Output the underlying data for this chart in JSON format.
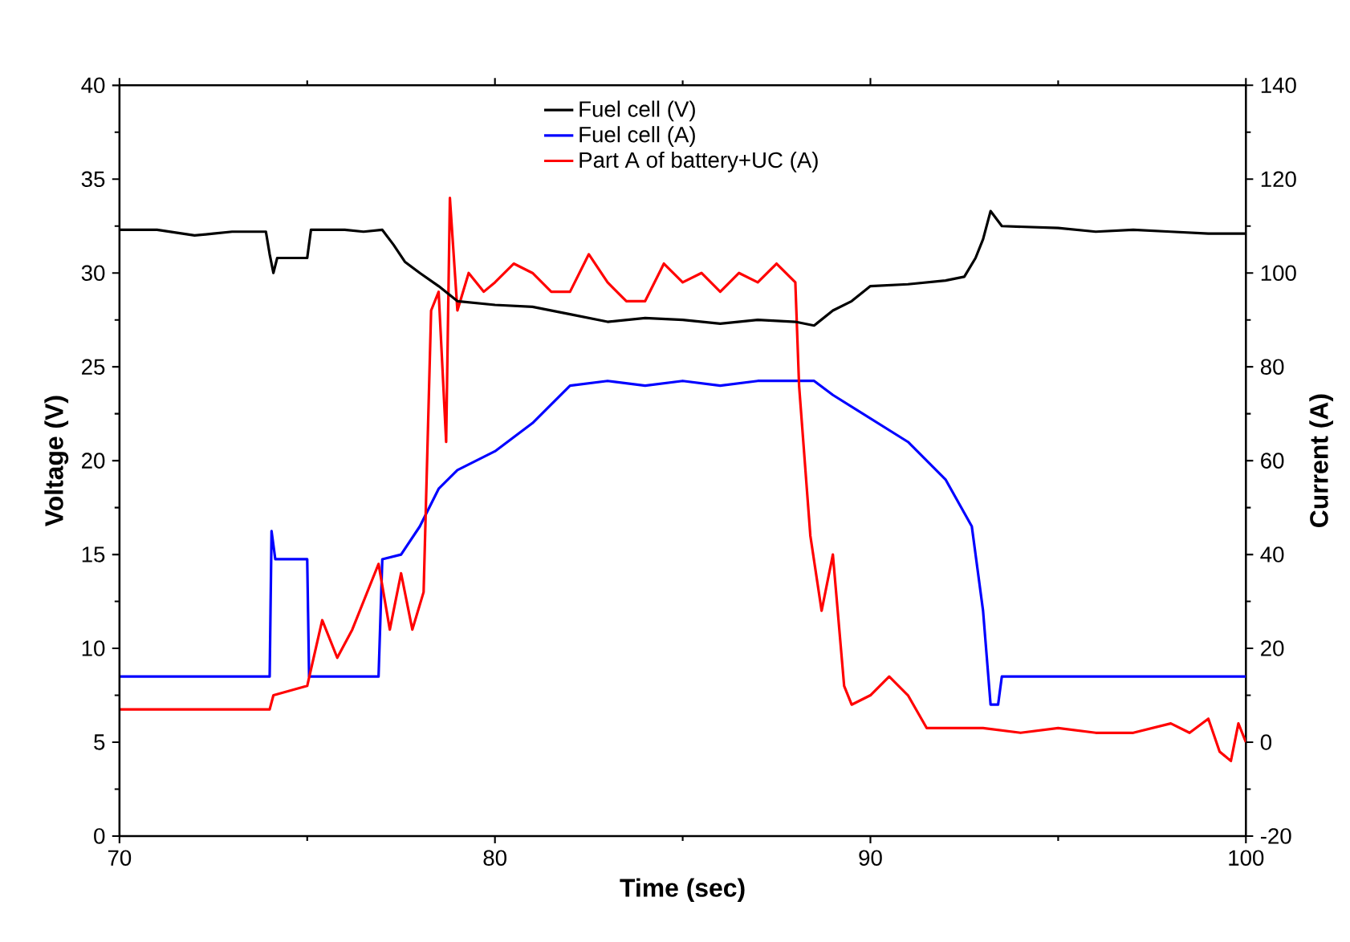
{
  "chart_data": {
    "type": "line",
    "xlabel": "Time (sec)",
    "ylabel": "Voltage (V)",
    "y2label": "Current (A)",
    "xlim": [
      70,
      100
    ],
    "xticks": [
      70,
      80,
      90,
      100
    ],
    "ylim": [
      0,
      40
    ],
    "yticks": [
      0,
      5,
      10,
      15,
      20,
      25,
      30,
      35,
      40
    ],
    "y2lim": [
      -20,
      140
    ],
    "y2ticks": [
      -20,
      0,
      20,
      40,
      60,
      80,
      100,
      120,
      140
    ],
    "legend": "top",
    "grid": false,
    "line_style": "solid",
    "marker": "none",
    "series": [
      {
        "name": "Fuel cell (V)",
        "color": "#000000",
        "x": [
          70,
          71,
          72,
          72.5,
          73,
          73.9,
          74.0,
          74.1,
          74.2,
          75.0,
          75.1,
          76,
          76.5,
          77.0,
          77.3,
          77.6,
          78,
          78.5,
          79,
          80,
          81,
          82,
          83,
          84,
          85,
          86,
          87,
          88,
          88.5,
          89,
          89.5,
          90,
          91,
          92,
          92.5,
          92.8,
          93.0,
          93.2,
          93.5,
          95,
          96,
          97,
          98,
          99,
          100
        ],
        "values": [
          32.3,
          32.3,
          32.0,
          32.1,
          32.2,
          32.2,
          31.0,
          30.0,
          30.8,
          30.8,
          32.3,
          32.3,
          32.2,
          32.3,
          31.5,
          30.6,
          30.0,
          29.3,
          28.5,
          28.3,
          28.2,
          27.8,
          27.4,
          27.6,
          27.5,
          27.3,
          27.5,
          27.4,
          27.2,
          28.0,
          28.5,
          29.3,
          29.4,
          29.6,
          29.8,
          30.8,
          31.8,
          33.3,
          32.5,
          32.4,
          32.2,
          32.3,
          32.2,
          32.1,
          32.1
        ]
      },
      {
        "name": "Fuel cell (A)",
        "color": "#0000ff",
        "axis": "y2",
        "x": [
          70,
          72,
          74.0,
          74.05,
          74.15,
          75.0,
          75.05,
          76,
          76.9,
          77.0,
          77.5,
          78,
          78.5,
          79,
          80,
          81,
          82,
          83,
          84,
          85,
          86,
          87,
          88,
          88.5,
          89,
          90,
          91,
          92,
          92.7,
          93.0,
          93.2,
          93.4,
          93.5,
          95,
          97,
          100
        ],
        "values": [
          14,
          14,
          14,
          45,
          39,
          39,
          14,
          14,
          14,
          39,
          40,
          46,
          54,
          58,
          62,
          68,
          76,
          77,
          76,
          77,
          76,
          77,
          77,
          77,
          74,
          69,
          64,
          56,
          46,
          28,
          8,
          8,
          14,
          14,
          14,
          14
        ]
      },
      {
        "name": "Part A of battery+UC (A)",
        "color": "#ff0000",
        "axis": "y2",
        "x": [
          70,
          72,
          74.0,
          74.1,
          75.0,
          75.4,
          75.8,
          76.2,
          76.9,
          77.2,
          77.5,
          77.8,
          78.1,
          78.3,
          78.5,
          78.7,
          78.8,
          79.0,
          79.3,
          79.7,
          80,
          80.5,
          81,
          81.5,
          82,
          82.5,
          83,
          83.5,
          84,
          84.5,
          85,
          85.5,
          86,
          86.5,
          87,
          87.5,
          88,
          88.1,
          88.4,
          88.7,
          89,
          89.3,
          89.5,
          90,
          90.5,
          91,
          91.5,
          92,
          93,
          94,
          95,
          96,
          97,
          98,
          98.5,
          99,
          99.3,
          99.6,
          99.8,
          100
        ],
        "values": [
          7,
          7,
          7,
          10,
          12,
          26,
          18,
          24,
          38,
          24,
          36,
          24,
          32,
          92,
          96,
          64,
          116,
          92,
          100,
          96,
          98,
          102,
          100,
          96,
          96,
          104,
          98,
          94,
          94,
          102,
          98,
          100,
          96,
          100,
          98,
          102,
          98,
          76,
          44,
          28,
          40,
          12,
          8,
          10,
          14,
          10,
          3,
          3,
          3,
          2,
          3,
          2,
          2,
          4,
          2,
          5,
          -2,
          -4,
          4,
          0
        ]
      }
    ]
  }
}
